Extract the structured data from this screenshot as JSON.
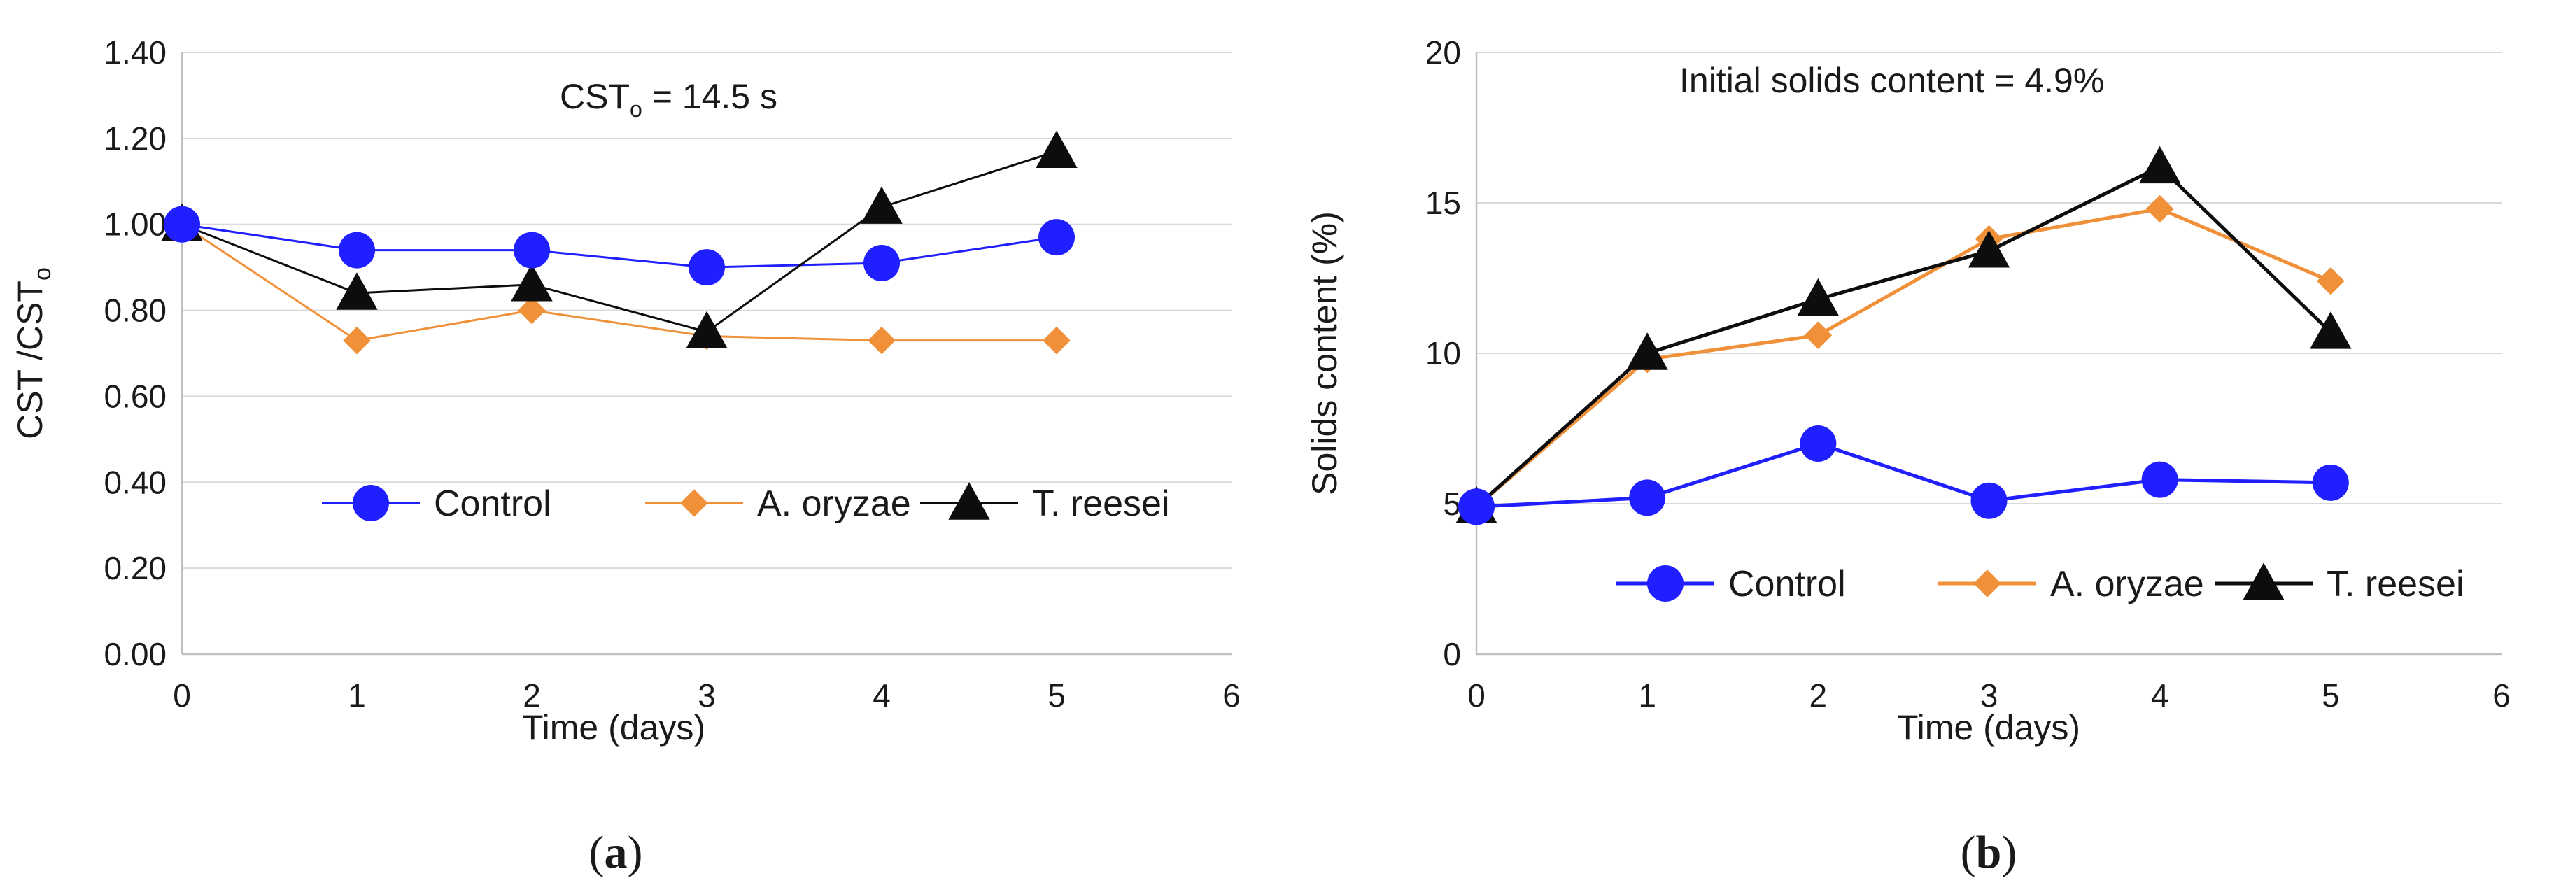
{
  "chart_data": [
    {
      "type": "line",
      "panel_label": "a",
      "annotation": "CST",
      "annotation_sub": "o",
      "annotation_rest": " = 14.5 s",
      "ylabel": "CST /CST",
      "ylabel_sub": "o",
      "xlabel": "Time (days)",
      "xlim": [
        0,
        6
      ],
      "ylim": [
        0,
        1.4
      ],
      "xticks": [
        "0",
        "1",
        "2",
        "3",
        "4",
        "5",
        "6"
      ],
      "yticks": [
        "0.00",
        "0.20",
        "0.40",
        "0.60",
        "0.80",
        "1.00",
        "1.20",
        "1.40"
      ],
      "grid": "horizontal",
      "legend": "bottom",
      "x": [
        0,
        1,
        2,
        3,
        4,
        5
      ],
      "series": [
        {
          "name": "Control",
          "marker": "circle",
          "color": "#1f1fff",
          "values": [
            1.0,
            0.94,
            0.94,
            0.9,
            0.91,
            0.97
          ]
        },
        {
          "name": "A. oryzae",
          "marker": "diamond",
          "color": "#f0913a",
          "values": [
            1.0,
            0.73,
            0.8,
            0.74,
            0.73,
            0.73
          ]
        },
        {
          "name": "T. reesei",
          "marker": "triangle",
          "color": "#0d0d0d",
          "values": [
            1.0,
            0.84,
            0.86,
            0.75,
            1.04,
            1.17
          ]
        }
      ]
    },
    {
      "type": "line",
      "panel_label": "b",
      "annotation": "Initial solids content = 4.9%",
      "ylabel": "Solids content (%)",
      "xlabel": "Time (days)",
      "xlim": [
        0,
        6
      ],
      "ylim": [
        0,
        20
      ],
      "xticks": [
        "0",
        "1",
        "2",
        "3",
        "4",
        "5",
        "6"
      ],
      "yticks": [
        "0",
        "5",
        "10",
        "15",
        "20"
      ],
      "grid": "horizontal",
      "legend": "bottom",
      "x": [
        0,
        1,
        2,
        3,
        4,
        5
      ],
      "series": [
        {
          "name": "Control",
          "marker": "circle",
          "color": "#1f1fff",
          "values": [
            4.9,
            5.2,
            7.0,
            5.1,
            5.8,
            5.7
          ]
        },
        {
          "name": "A. oryzae",
          "marker": "diamond",
          "color": "#f0913a",
          "values": [
            4.9,
            9.8,
            10.6,
            13.8,
            14.8,
            12.4
          ]
        },
        {
          "name": "T. reesei",
          "marker": "triangle",
          "color": "#0d0d0d",
          "values": [
            4.9,
            10.0,
            11.8,
            13.4,
            16.2,
            10.7
          ]
        }
      ]
    }
  ]
}
